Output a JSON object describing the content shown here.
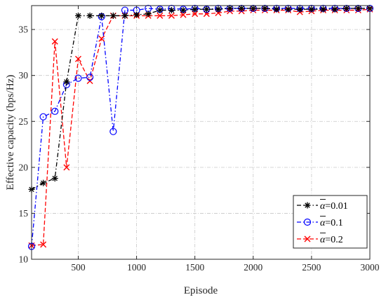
{
  "chart_data": {
    "type": "line",
    "title": "",
    "xlabel": "Episode",
    "ylabel": "Effective capacity (bps/Hz)",
    "xlim": [
      100,
      3000
    ],
    "ylim": [
      10,
      37.6
    ],
    "xticks": [
      500,
      1000,
      1500,
      2000,
      2500,
      3000
    ],
    "yticks": [
      10,
      15,
      20,
      25,
      30,
      35
    ],
    "grid": true,
    "legend_position": "lower-right",
    "x": [
      100,
      200,
      300,
      400,
      500,
      600,
      700,
      800,
      900,
      1000,
      1100,
      1200,
      1300,
      1400,
      1500,
      1600,
      1700,
      1800,
      1900,
      2000,
      2100,
      2200,
      2300,
      2400,
      2500,
      2600,
      2700,
      2800,
      2900,
      3000
    ],
    "series": [
      {
        "name": "α̅=0.01",
        "legend_symbol": "α",
        "legend_value": "=0.01",
        "color": "#000000",
        "dash": "6,3,1.5,3",
        "marker": "asterisk",
        "values": [
          17.6,
          18.3,
          18.8,
          29.3,
          36.5,
          36.5,
          36.5,
          36.5,
          36.5,
          36.6,
          36.7,
          37.1,
          37.1,
          37.1,
          37.2,
          37.2,
          37.2,
          37.3,
          37.3,
          37.3,
          37.3,
          37.2,
          37.2,
          37.2,
          37.2,
          37.2,
          37.2,
          37.3,
          37.3,
          37.3
        ]
      },
      {
        "name": "α̅=0.1",
        "legend_symbol": "α",
        "legend_value": "=0.1",
        "color": "#0000ff",
        "dash": "6,3,1.5,3",
        "marker": "circle",
        "values": [
          11.4,
          25.5,
          26.1,
          29.0,
          29.7,
          29.8,
          36.4,
          23.9,
          37.1,
          37.1,
          37.3,
          37.2,
          37.3,
          37.2,
          37.3,
          37.2,
          37.3,
          37.3,
          37.3,
          37.3,
          37.3,
          37.3,
          37.3,
          37.3,
          37.3,
          37.3,
          37.3,
          37.3,
          37.3,
          37.3
        ]
      },
      {
        "name": "α̅=0.2",
        "legend_symbol": "α",
        "legend_value": "=0.2",
        "color": "#ff0000",
        "dash": "6,3",
        "marker": "x",
        "values": [
          11.5,
          11.6,
          33.7,
          20.0,
          31.8,
          29.4,
          34.0,
          36.5,
          36.5,
          36.5,
          36.5,
          36.5,
          36.5,
          36.6,
          36.7,
          36.7,
          36.8,
          37.0,
          37.0,
          37.1,
          37.1,
          37.1,
          37.1,
          36.9,
          37.0,
          37.1,
          37.1,
          37.1,
          37.1,
          37.2
        ]
      }
    ]
  }
}
